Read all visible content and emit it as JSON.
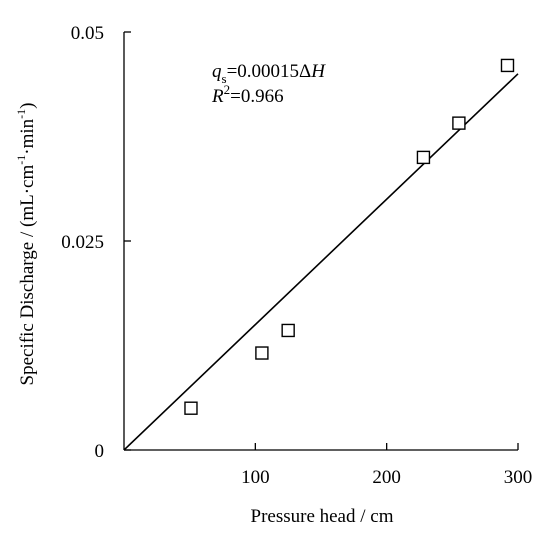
{
  "chart_data": {
    "type": "scatter",
    "xlabel": "Pressure head / cm",
    "ylabel": {
      "prefix": "Specific Discharge / (mL·cm",
      "exp1": "-1",
      "mid": "·min",
      "exp2": "-1",
      "suffix": ")"
    },
    "xlim": [
      0,
      300
    ],
    "ylim": [
      0,
      0.05
    ],
    "xticks": [
      {
        "value": 100,
        "label": "100"
      },
      {
        "value": 200,
        "label": "200"
      },
      {
        "value": 300,
        "label": "300"
      }
    ],
    "yticks": [
      {
        "value": 0,
        "label": "0"
      },
      {
        "value": 0.025,
        "label": "0.025"
      },
      {
        "value": 0.05,
        "label": "0.05"
      }
    ],
    "points": [
      {
        "x": 51,
        "y": 0.005
      },
      {
        "x": 105,
        "y": 0.0116
      },
      {
        "x": 125,
        "y": 0.0143
      },
      {
        "x": 228,
        "y": 0.035
      },
      {
        "x": 255,
        "y": 0.0391
      },
      {
        "x": 292,
        "y": 0.046
      }
    ],
    "fit": {
      "slope": 0.00015,
      "intercept": 0,
      "x_range": [
        0,
        300
      ]
    },
    "annotation": {
      "eq_var": "q",
      "eq_sub": "s",
      "eq_rest": "=0.00015Δ",
      "eq_var2": "H",
      "r2_var": "R",
      "r2_exp": "2",
      "r2_rest": "=0.966"
    },
    "grid": false,
    "legend": "none",
    "colors": {
      "axis": "#000000",
      "marker_stroke": "#000000",
      "marker_fill": "#ffffff",
      "line": "#000000"
    }
  }
}
